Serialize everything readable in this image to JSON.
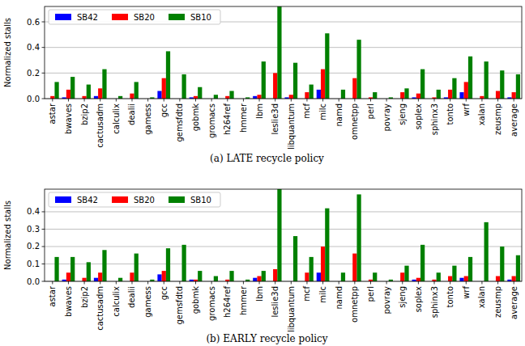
{
  "chart_data": [
    {
      "type": "bar",
      "title": "(a) LATE recycle policy",
      "y_label": "Normalized stalls",
      "categories": [
        "astar",
        "bwaves",
        "bzip2",
        "cactusadm",
        "calculix",
        "dealii",
        "gamess",
        "gcc",
        "gemsfdtd",
        "gobmk",
        "gromacs",
        "h264ref",
        "hmmer",
        "lbm",
        "leslie3d",
        "libquantum",
        "mcf",
        "milc",
        "namd",
        "omnetpp",
        "perl",
        "povray",
        "sjeng",
        "soplex",
        "sphinx3",
        "tonto",
        "wrf",
        "xalan",
        "zeusmp",
        "average"
      ],
      "series": [
        {
          "name": "SB42",
          "color": "#0000ff",
          "values": [
            0,
            0.01,
            0,
            0.02,
            0,
            0,
            0,
            0.06,
            0,
            0.01,
            0,
            0,
            0,
            0.02,
            0,
            0.01,
            0,
            0.07,
            0,
            0,
            0,
            0,
            0,
            0.01,
            0,
            0.01,
            0.05,
            0,
            0,
            0.01
          ]
        },
        {
          "name": "SB20",
          "color": "#ff0000",
          "values": [
            0.02,
            0.07,
            0.02,
            0.08,
            0,
            0.04,
            0,
            0.16,
            0,
            0.02,
            0,
            0.02,
            0,
            0.03,
            0.2,
            0.03,
            0.05,
            0.23,
            0,
            0.16,
            0.01,
            0,
            0.05,
            0.04,
            0.01,
            0.07,
            0.13,
            0.02,
            0.06,
            0.05
          ]
        },
        {
          "name": "SB10",
          "color": "#008000",
          "values": [
            0.13,
            0.17,
            0.11,
            0.23,
            0.02,
            0.13,
            0.01,
            0.37,
            0.19,
            0.09,
            0.03,
            0.06,
            0.01,
            0.29,
            0.72,
            0.28,
            0.11,
            0.51,
            0.07,
            0.46,
            0.05,
            0.01,
            0.08,
            0.23,
            0.07,
            0.16,
            0.33,
            0.29,
            0.22,
            0.19
          ]
        }
      ],
      "ylim": [
        0,
        0.72
      ],
      "yticks": [
        {
          "value": 0,
          "label": "0.0"
        },
        0.2,
        0.4,
        0.6
      ],
      "grid": true,
      "legend": "upper-left"
    },
    {
      "type": "bar",
      "title": "(b) EARLY recycle policy",
      "y_label": "Normalized stalls",
      "categories": [
        "astar",
        "bwaves",
        "bzip2",
        "cactusadm",
        "calculix",
        "dealii",
        "gamess",
        "gcc",
        "gemsfdtd",
        "gobmk",
        "gromacs",
        "h264ref",
        "hmmer",
        "lbm",
        "leslie3d",
        "libquantum",
        "mcf",
        "milc",
        "namd",
        "omnetpp",
        "perl",
        "povray",
        "sjeng",
        "soplex",
        "sphinx3",
        "tonto",
        "wrf",
        "xalan",
        "zeusmp",
        "average"
      ],
      "series": [
        {
          "name": "SB42",
          "color": "#0000ff",
          "values": [
            0,
            0.01,
            0,
            0.02,
            0,
            0,
            0,
            0.04,
            0,
            0.01,
            0,
            0,
            0,
            0.02,
            0,
            0,
            0,
            0.05,
            0,
            0,
            0,
            0,
            0,
            0.01,
            0,
            0,
            0.02,
            0,
            0,
            0.01
          ]
        },
        {
          "name": "SB20",
          "color": "#ff0000",
          "values": [
            0,
            0.05,
            0.02,
            0.05,
            0,
            0.05,
            0,
            0.06,
            0,
            0.01,
            0,
            0.01,
            0,
            0.03,
            0.07,
            0,
            0.05,
            0.2,
            0,
            0.16,
            0.01,
            0,
            0.05,
            0.02,
            0.01,
            0.03,
            0.03,
            0,
            0.03,
            0.03
          ]
        },
        {
          "name": "SB10",
          "color": "#008000",
          "values": [
            0.14,
            0.14,
            0.11,
            0.18,
            0.02,
            0.16,
            0.01,
            0.19,
            0.21,
            0.06,
            0.03,
            0.06,
            0.01,
            0.06,
            0.53,
            0.26,
            0.14,
            0.42,
            0.05,
            0.5,
            0.05,
            0.01,
            0.09,
            0.21,
            0.05,
            0.09,
            0.14,
            0.34,
            0.2,
            0.15
          ]
        }
      ],
      "ylim": [
        0,
        0.53
      ],
      "yticks": [
        {
          "value": 0,
          "label": "0.0"
        },
        0.1,
        0.2,
        0.3,
        0.4
      ],
      "grid": true,
      "legend": "upper-left"
    }
  ]
}
